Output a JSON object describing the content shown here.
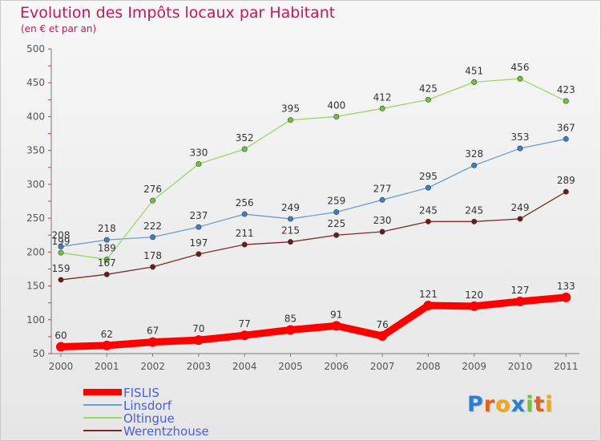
{
  "page": {
    "title": "Evolution des Impôts locaux par Habitant",
    "subtitle": "(en € et par an)"
  },
  "chart_data": {
    "type": "line",
    "title": "Evolution des Impôts locaux par Habitant",
    "subtitle": "(en € et par an)",
    "xlabel": "",
    "ylabel": "",
    "categories": [
      "2000",
      "2001",
      "2002",
      "2003",
      "2004",
      "2005",
      "2006",
      "2007",
      "2008",
      "2009",
      "2010",
      "2011"
    ],
    "ylim": [
      50,
      500
    ],
    "yticks": [
      50,
      100,
      150,
      200,
      250,
      300,
      350,
      400,
      450,
      500
    ],
    "grid": false,
    "legend_position": "bottom-left",
    "series": [
      {
        "name": "FISLIS",
        "color": "#ff0000",
        "values": [
          60,
          62,
          67,
          70,
          77,
          85,
          91,
          76,
          121,
          120,
          127,
          133
        ],
        "emphasis": true
      },
      {
        "name": "Linsdorf",
        "color": "#6a9fcf",
        "marker_color": "#3b7fc4",
        "values": [
          208,
          218,
          222,
          237,
          256,
          249,
          259,
          277,
          295,
          328,
          353,
          367
        ]
      },
      {
        "name": "Oltingue",
        "color": "#9ad76a",
        "marker_color": "#6cc43a",
        "values": [
          199,
          189,
          276,
          330,
          352,
          395,
          400,
          412,
          425,
          451,
          456,
          423
        ]
      },
      {
        "name": "Werentzhouse",
        "color": "#7b2b2b",
        "marker_color": "#6b1a1a",
        "values": [
          159,
          167,
          178,
          197,
          211,
          215,
          225,
          230,
          245,
          245,
          249,
          289
        ]
      }
    ]
  },
  "logo": {
    "letters": [
      "P",
      "r",
      "o",
      "x",
      "i",
      "t",
      "i"
    ],
    "colors": [
      "#2a7fd4",
      "#e0651c",
      "#f2a61b",
      "#2a7fd4",
      "#7ac142",
      "#e0651c",
      "#f2a61b"
    ]
  }
}
